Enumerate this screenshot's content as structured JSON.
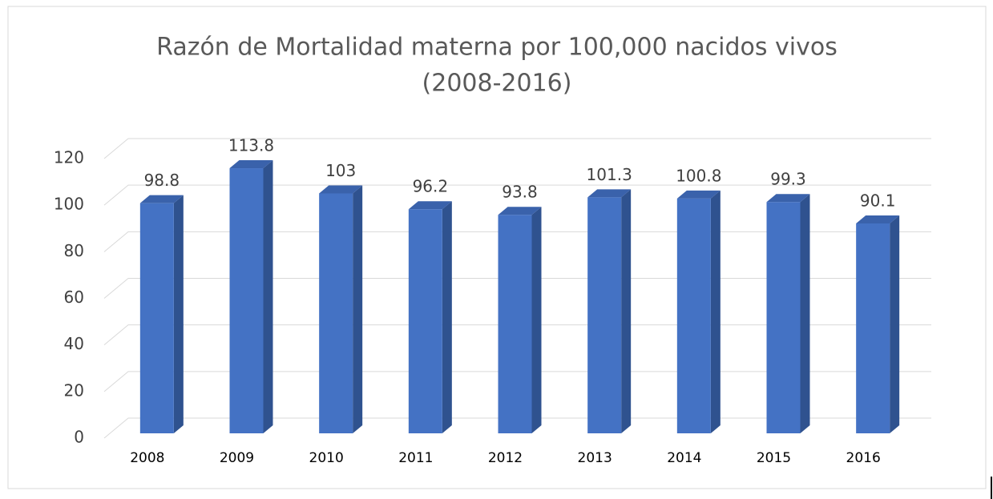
{
  "chart_data": {
    "type": "bar3d",
    "title": "Razón de Mortalidad materna por 100,000 nacidos vivos",
    "subtitle": "(2008-2016)",
    "categories": [
      "2008",
      "2009",
      "2010",
      "2011",
      "2012",
      "2013",
      "2014",
      "2015",
      "2016"
    ],
    "values": [
      98.8,
      113.8,
      103,
      96.2,
      93.8,
      101.3,
      100.8,
      99.3,
      90.1
    ],
    "color": "#4472c4",
    "ylim": [
      0,
      120
    ],
    "yticks": [
      0,
      20,
      40,
      60,
      80,
      100,
      120
    ],
    "grid": true,
    "data_labels": true
  }
}
